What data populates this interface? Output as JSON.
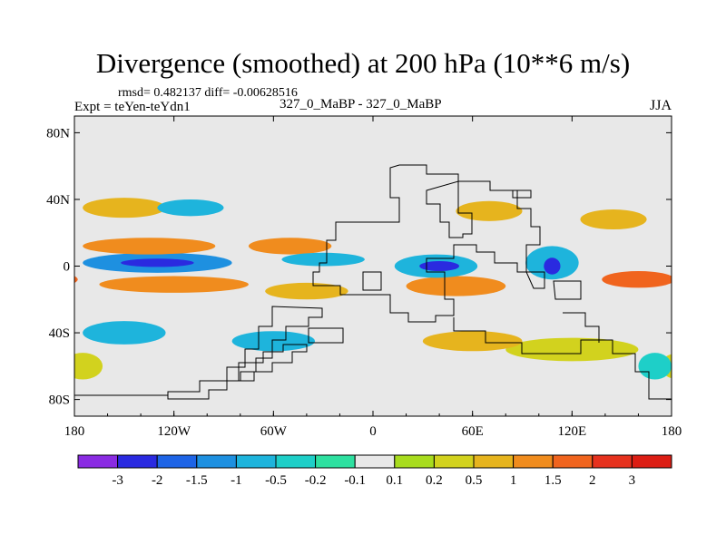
{
  "chart_data": {
    "type": "heatmap",
    "title": "Divergence (smoothed) at 200 hPa (10**6 m/s)",
    "subtitle_stats": "rmsd= 0.482137 diff= -0.00628516",
    "left_label": "Expt = teYen-teYdn1",
    "center_label": "327_0_MaBP - 327_0_MaBP",
    "right_label": "JJA",
    "x_axis": {
      "range": [
        -180,
        180
      ],
      "ticks": [
        -180,
        -120,
        -60,
        0,
        60,
        120,
        180
      ],
      "tick_labels": [
        "180",
        "120W",
        "60W",
        "0",
        "60E",
        "120E",
        "180"
      ]
    },
    "y_axis": {
      "range": [
        -90,
        90
      ],
      "ticks": [
        80,
        40,
        0,
        -40,
        -80
      ],
      "tick_labels": [
        "80N",
        "40N",
        "0",
        "40S",
        "80S"
      ]
    },
    "colorbar": {
      "labels": [
        "-3",
        "-2",
        "-1.5",
        "-1",
        "-0.5",
        "-0.2",
        "-0.1",
        "0.1",
        "0.2",
        "0.5",
        "1",
        "1.5",
        "2",
        "3"
      ],
      "colors": [
        "#8a2be2",
        "#2a2ae0",
        "#1e64e6",
        "#1e90e0",
        "#1eb4dc",
        "#1ecfc8",
        "#2ee0a0",
        "#e8e8e8",
        "#a8dc1e",
        "#d2d21e",
        "#e6b41e",
        "#f08c1e",
        "#f0641e",
        "#e6321e",
        "#dc1e14"
      ]
    },
    "features": [
      {
        "name": "strong-convergence-east-pacific",
        "lon": -130,
        "lat": 2,
        "rx": 22,
        "ry": 2.5,
        "value": -2.5
      },
      {
        "name": "convergence-east-pacific-broad",
        "lon": -130,
        "lat": 2,
        "rx": 45,
        "ry": 6,
        "value": -1
      },
      {
        "name": "divergence-north-pacific-band",
        "lon": -135,
        "lat": 12,
        "rx": 40,
        "ry": 5,
        "value": 1.5
      },
      {
        "name": "divergence-south-pacific-band",
        "lon": -120,
        "lat": -11,
        "rx": 45,
        "ry": 5,
        "value": 1.2
      },
      {
        "name": "convergence-africa",
        "lon": 40,
        "lat": 0,
        "rx": 12,
        "ry": 3,
        "value": -2.2
      },
      {
        "name": "convergence-africa-broad",
        "lon": 38,
        "lat": 0,
        "rx": 25,
        "ry": 7,
        "value": -0.8
      },
      {
        "name": "divergence-indian-ocean-south",
        "lon": 50,
        "lat": -12,
        "rx": 30,
        "ry": 6,
        "value": 1.5
      },
      {
        "name": "convergence-maritime-continent",
        "lon": 108,
        "lat": 0,
        "rx": 5,
        "ry": 5,
        "value": -2.5
      },
      {
        "name": "convergence-maritime-broad",
        "lon": 108,
        "lat": 2,
        "rx": 16,
        "ry": 10,
        "value": -0.7
      },
      {
        "name": "divergence-west-pacific",
        "lon": 160,
        "lat": -8,
        "rx": 22,
        "ry": 5,
        "value": 1.6
      },
      {
        "name": "divergence-north-atlantic",
        "lon": -50,
        "lat": 12,
        "rx": 25,
        "ry": 5,
        "value": 1.2
      },
      {
        "name": "convergence-north-atlantic",
        "lon": -30,
        "lat": 4,
        "rx": 25,
        "ry": 4,
        "value": -0.6
      },
      {
        "name": "divergence-south-atlantic",
        "lon": -40,
        "lat": -15,
        "rx": 25,
        "ry": 5,
        "value": 0.8
      },
      {
        "name": "divergence-midlat-north-pacific",
        "lon": -150,
        "lat": 35,
        "rx": 25,
        "ry": 6,
        "value": 0.6
      },
      {
        "name": "convergence-midlat-north-pacific",
        "lon": -110,
        "lat": 35,
        "rx": 20,
        "ry": 5,
        "value": -0.5
      },
      {
        "name": "divergence-asia",
        "lon": 70,
        "lat": 33,
        "rx": 20,
        "ry": 6,
        "value": 0.8
      },
      {
        "name": "divergence-east-asia",
        "lon": 145,
        "lat": 28,
        "rx": 20,
        "ry": 6,
        "value": 0.7
      },
      {
        "name": "convergence-southern-ocean",
        "lon": -60,
        "lat": -45,
        "rx": 25,
        "ry": 6,
        "value": -0.6
      },
      {
        "name": "divergence-southern-ocean",
        "lon": 120,
        "lat": -50,
        "rx": 40,
        "ry": 7,
        "value": 0.5
      },
      {
        "name": "divergence-south-indian",
        "lon": 60,
        "lat": -45,
        "rx": 30,
        "ry": 6,
        "value": 0.6
      },
      {
        "name": "convergence-south-pacific-high",
        "lon": -150,
        "lat": -40,
        "rx": 25,
        "ry": 7,
        "value": -0.5
      },
      {
        "name": "divergence-antarctic-edge",
        "lon": -175,
        "lat": -60,
        "rx": 12,
        "ry": 8,
        "value": 0.5
      },
      {
        "name": "convergence-antarctic-edge",
        "lon": 170,
        "lat": -60,
        "rx": 10,
        "ry": 8,
        "value": -0.4
      }
    ]
  }
}
